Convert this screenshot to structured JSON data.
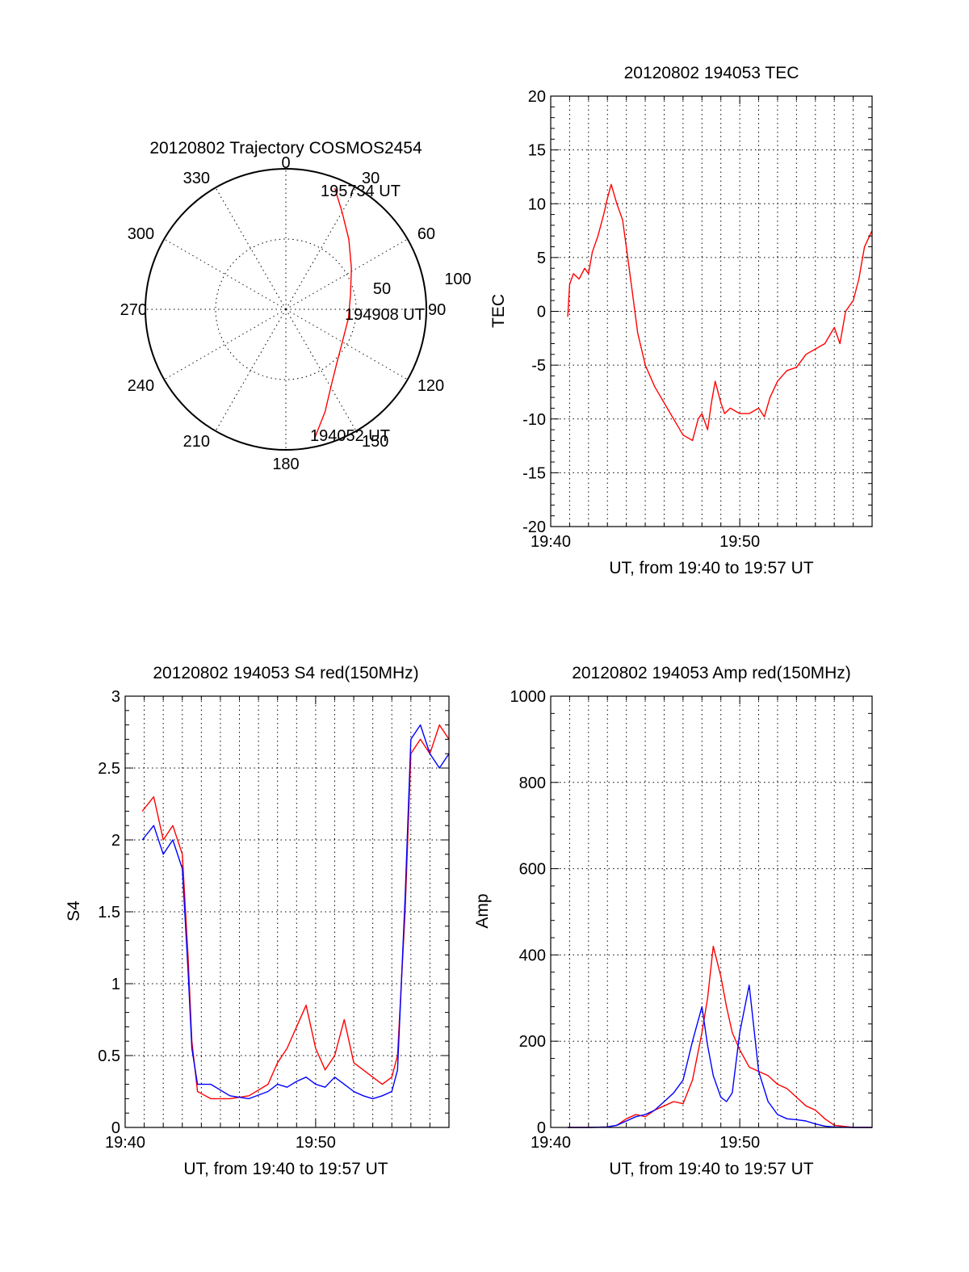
{
  "colors": {
    "red": "#ff0000",
    "blue": "#0000ff",
    "axis": "#000000"
  },
  "chart_data": [
    {
      "type": "polar",
      "title": "20120802 Trajectory COSMOS2454",
      "azimuth_labels": [
        "0",
        "30",
        "60",
        "90",
        "120",
        "150",
        "180",
        "210",
        "240",
        "270",
        "300",
        "330"
      ],
      "radial_labels": [
        "50",
        "100"
      ],
      "radial_max": 100,
      "series": [
        {
          "color": "#ff0000",
          "points": [
            {
              "az": 167,
              "r": 93
            },
            {
              "az": 159,
              "r": 78
            },
            {
              "az": 150,
              "r": 64
            },
            {
              "az": 137,
              "r": 53
            },
            {
              "az": 118,
              "r": 46
            },
            {
              "az": 98,
              "r": 45
            },
            {
              "az": 78,
              "r": 47
            },
            {
              "az": 58,
              "r": 55
            },
            {
              "az": 42,
              "r": 67
            },
            {
              "az": 30,
              "r": 80
            },
            {
              "az": 22,
              "r": 93
            }
          ]
        }
      ],
      "annotations": [
        {
          "text": "195734 UT"
        },
        {
          "text": "194908 UT"
        },
        {
          "text": "194052 UT"
        }
      ]
    },
    {
      "type": "line",
      "title": "20120802 194053 TEC",
      "xlabel": "UT, from 19:40 to 19:57 UT",
      "ylabel": "TEC",
      "xlim": [
        0,
        17
      ],
      "ylim": [
        -20,
        20
      ],
      "yticks": [
        -20,
        -15,
        -10,
        -5,
        0,
        5,
        10,
        15,
        20
      ],
      "xtick_labels": [
        "19:40",
        "19:50"
      ],
      "series": [
        {
          "color": "#ff0000",
          "x": [
            0.9,
            1.0,
            1.2,
            1.5,
            1.8,
            2.0,
            2.2,
            2.5,
            2.8,
            3.0,
            3.2,
            3.5,
            3.8,
            4.0,
            4.3,
            4.6,
            5.0,
            5.5,
            6.0,
            6.5,
            7.0,
            7.5,
            7.8,
            8.0,
            8.3,
            8.5,
            8.7,
            9.0,
            9.2,
            9.5,
            10.0,
            10.5,
            11.0,
            11.3,
            11.6,
            12.0,
            12.5,
            13.0,
            13.5,
            14.0,
            14.5,
            15.0,
            15.3,
            15.6,
            16.0,
            16.3,
            16.6,
            17.0
          ],
          "y": [
            -0.5,
            2.5,
            3.5,
            3.0,
            4.0,
            3.5,
            5.5,
            7.0,
            9.0,
            10.5,
            11.8,
            10.0,
            8.5,
            6.0,
            2.0,
            -2.0,
            -5.0,
            -7.0,
            -8.5,
            -10.0,
            -11.5,
            -12.0,
            -10.0,
            -9.5,
            -11.0,
            -8.5,
            -6.5,
            -8.5,
            -9.5,
            -9.0,
            -9.5,
            -9.5,
            -9.0,
            -9.8,
            -8.0,
            -6.5,
            -5.5,
            -5.2,
            -4.0,
            -3.5,
            -3.0,
            -1.5,
            -3.0,
            0.0,
            1.0,
            3.0,
            6.0,
            7.5
          ]
        }
      ]
    },
    {
      "type": "line",
      "title": "20120802 194053 S4 red(150MHz)",
      "xlabel": "UT, from 19:40 to 19:57 UT",
      "ylabel": "S4",
      "xlim": [
        0,
        17
      ],
      "ylim": [
        0,
        3
      ],
      "yticks": [
        0,
        0.5,
        1,
        1.5,
        2,
        2.5,
        3
      ],
      "xtick_labels": [
        "19:40",
        "19:50"
      ],
      "series": [
        {
          "color": "#ff0000",
          "x": [
            0.9,
            1.5,
            2.0,
            2.5,
            3.0,
            3.3,
            3.5,
            3.8,
            4.5,
            5.5,
            6.5,
            7.5,
            8.0,
            8.5,
            9.0,
            9.5,
            10.0,
            10.5,
            11.0,
            11.5,
            12.0,
            12.5,
            13.0,
            13.5,
            14.0,
            14.3,
            14.7,
            15.0,
            15.5,
            16.0,
            16.5,
            17.0
          ],
          "y": [
            2.2,
            2.3,
            2.0,
            2.1,
            1.9,
            1.2,
            0.6,
            0.25,
            0.2,
            0.2,
            0.22,
            0.3,
            0.45,
            0.55,
            0.7,
            0.85,
            0.55,
            0.4,
            0.5,
            0.75,
            0.45,
            0.4,
            0.35,
            0.3,
            0.35,
            0.5,
            1.5,
            2.6,
            2.7,
            2.6,
            2.8,
            2.7
          ]
        },
        {
          "color": "#0000ff",
          "x": [
            0.9,
            1.5,
            2.0,
            2.5,
            3.0,
            3.3,
            3.5,
            3.8,
            4.5,
            5.5,
            6.5,
            7.5,
            8.0,
            8.5,
            9.0,
            9.5,
            10.0,
            10.5,
            11.0,
            11.5,
            12.0,
            12.5,
            13.0,
            13.5,
            14.0,
            14.3,
            14.7,
            15.0,
            15.5,
            16.0,
            16.5,
            17.0
          ],
          "y": [
            2.0,
            2.1,
            1.9,
            2.0,
            1.8,
            1.1,
            0.55,
            0.3,
            0.3,
            0.22,
            0.2,
            0.25,
            0.3,
            0.28,
            0.32,
            0.35,
            0.3,
            0.28,
            0.35,
            0.3,
            0.25,
            0.22,
            0.2,
            0.22,
            0.25,
            0.4,
            1.6,
            2.7,
            2.8,
            2.6,
            2.5,
            2.6
          ]
        }
      ]
    },
    {
      "type": "line",
      "title": "20120802 194053 Amp red(150MHz)",
      "xlabel": "UT, from 19:40 to 19:57 UT",
      "ylabel": "Amp",
      "xlim": [
        0,
        17
      ],
      "ylim": [
        0,
        1000
      ],
      "yticks": [
        0,
        200,
        400,
        600,
        800,
        1000
      ],
      "xtick_labels": [
        "19:40",
        "19:50"
      ],
      "series": [
        {
          "color": "#ff0000",
          "x": [
            0.9,
            2.0,
            3.0,
            3.5,
            4.0,
            4.5,
            5.0,
            5.5,
            6.0,
            6.5,
            7.0,
            7.5,
            8.0,
            8.3,
            8.6,
            9.0,
            9.3,
            9.6,
            10.0,
            10.5,
            11.0,
            11.5,
            12.0,
            12.5,
            13.0,
            13.5,
            14.0,
            14.5,
            15.0,
            16.0,
            17.0
          ],
          "y": [
            0,
            0,
            1,
            5,
            20,
            30,
            25,
            40,
            50,
            60,
            55,
            110,
            220,
            300,
            420,
            350,
            280,
            220,
            180,
            140,
            130,
            120,
            100,
            90,
            70,
            50,
            40,
            20,
            5,
            0,
            0
          ]
        },
        {
          "color": "#0000ff",
          "x": [
            0.9,
            2.0,
            3.0,
            3.5,
            4.0,
            4.5,
            5.0,
            5.5,
            6.0,
            6.5,
            7.0,
            7.5,
            8.0,
            8.3,
            8.6,
            9.0,
            9.3,
            9.6,
            10.0,
            10.5,
            11.0,
            11.5,
            12.0,
            12.5,
            13.0,
            13.5,
            14.0,
            14.5,
            15.0,
            16.0,
            17.0
          ],
          "y": [
            0,
            0,
            1,
            5,
            15,
            25,
            30,
            40,
            60,
            80,
            110,
            200,
            280,
            190,
            120,
            70,
            60,
            80,
            220,
            330,
            130,
            60,
            30,
            20,
            18,
            15,
            8,
            3,
            1,
            0,
            0
          ]
        }
      ]
    }
  ]
}
